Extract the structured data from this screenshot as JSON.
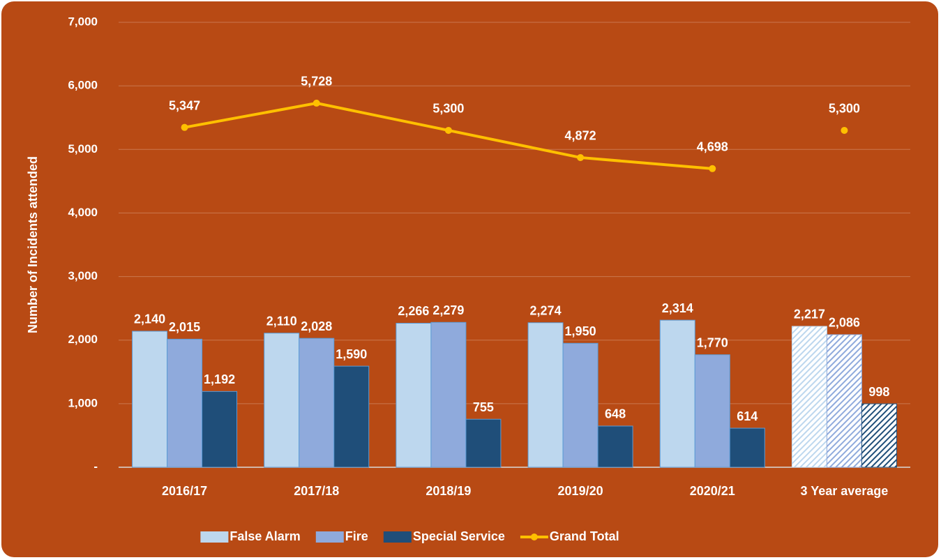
{
  "chart_data": {
    "type": "bar_line",
    "y_label": "Number of Incidents attended",
    "categories": [
      "2016/17",
      "2017/18",
      "2018/19",
      "2019/20",
      "2020/21"
    ],
    "series": [
      {
        "name": "False Alarm",
        "kind": "bar",
        "color": "#BDD7EE",
        "values": [
          2140,
          2110,
          2266,
          2274,
          2314
        ],
        "value_labels": [
          "2,140",
          "2,110",
          "2,266",
          "2,274",
          "2,314"
        ]
      },
      {
        "name": "Fire",
        "kind": "bar",
        "color": "#8FAADC",
        "values": [
          2015,
          2028,
          2279,
          1950,
          1770
        ],
        "value_labels": [
          "2,015",
          "2,028",
          "2,279",
          "1,950",
          "1,770"
        ]
      },
      {
        "name": "Special Service",
        "kind": "bar",
        "color": "#1F4E79",
        "values": [
          1192,
          1590,
          755,
          648,
          614
        ],
        "value_labels": [
          "1,192",
          "1,590",
          "755",
          "648",
          "614"
        ]
      },
      {
        "name": "Grand Total",
        "kind": "line",
        "color": "#FFC000",
        "values": [
          5347,
          5728,
          5300,
          4872,
          4698
        ],
        "value_labels": [
          "5,347",
          "5,728",
          "5,300",
          "4,872",
          "4,698"
        ]
      }
    ],
    "average": {
      "label": "3 Year average",
      "style": "hatched",
      "values": [
        2217,
        2086,
        998,
        5300
      ],
      "value_labels": [
        "2,217",
        "2,086",
        "998",
        "5,300"
      ]
    },
    "ylim": [
      0,
      7000
    ],
    "yticks": [
      {
        "value": 0,
        "label": "-"
      },
      {
        "value": 1000,
        "label": "1,000"
      },
      {
        "value": 2000,
        "label": "2,000"
      },
      {
        "value": 3000,
        "label": "3,000"
      },
      {
        "value": 4000,
        "label": "4,000"
      },
      {
        "value": 5000,
        "label": "5,000"
      },
      {
        "value": 6000,
        "label": "6,000"
      },
      {
        "value": 7000,
        "label": "7,000"
      }
    ],
    "grid": true,
    "legend": "bottom"
  }
}
